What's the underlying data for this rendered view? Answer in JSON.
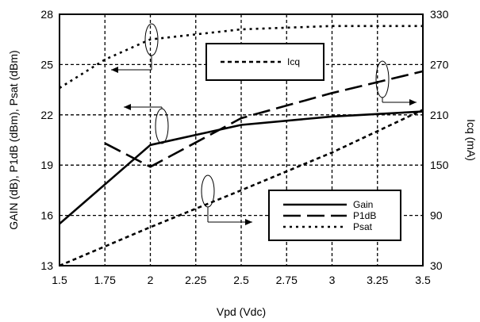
{
  "chart_data": {
    "type": "line",
    "xlabel": "Vpd (Vdc)",
    "ylabel_left": "GAIN (dB), P1dB (dBm), Psat (dBm)",
    "ylabel_right": "Icq (mA)",
    "xlim": [
      1.5,
      3.5
    ],
    "ylim_left": [
      13,
      28
    ],
    "ylim_right": [
      30,
      330
    ],
    "x_ticks": [
      "1.5",
      "1.75",
      "2",
      "2.25",
      "2.5",
      "2.75",
      "3",
      "3.25",
      "3.5"
    ],
    "y_ticks_left": [
      "13",
      "16",
      "19",
      "22",
      "25",
      "28"
    ],
    "y_ticks_right": [
      "30",
      "90",
      "150",
      "210",
      "270",
      "330"
    ],
    "grid": true,
    "series": [
      {
        "name": "Gain",
        "axis": "left",
        "style": "solid",
        "x": [
          1.5,
          2.0,
          2.5,
          3.0,
          3.5
        ],
        "y": [
          15.5,
          20.2,
          21.4,
          21.9,
          22.2
        ]
      },
      {
        "name": "P1dB",
        "axis": "left",
        "style": "dashed",
        "x": [
          1.75,
          2.0,
          2.5,
          3.0,
          3.5
        ],
        "y": [
          20.3,
          18.9,
          21.8,
          23.3,
          24.6
        ]
      },
      {
        "name": "Psat",
        "axis": "left",
        "style": "dotted",
        "x": [
          1.5,
          1.75,
          2.0,
          2.5,
          3.0,
          3.5
        ],
        "y": [
          23.6,
          25.3,
          26.5,
          27.1,
          27.3,
          27.3
        ]
      },
      {
        "name": "Icq",
        "axis": "right",
        "style": "short-dash",
        "x": [
          1.5,
          2.0,
          2.5,
          3.0,
          3.5
        ],
        "y": [
          30,
          76,
          120,
          165,
          216
        ]
      }
    ],
    "legend_lower": {
      "placement": "bottom-right",
      "entries": [
        {
          "label": "Gain",
          "style": "solid"
        },
        {
          "label": "P1dB",
          "style": "dashed"
        },
        {
          "label": "Psat",
          "style": "dotted"
        }
      ]
    },
    "legend_upper": {
      "placement": "top-center",
      "entries": [
        {
          "label": "Icq",
          "style": "short-dash"
        }
      ]
    }
  }
}
